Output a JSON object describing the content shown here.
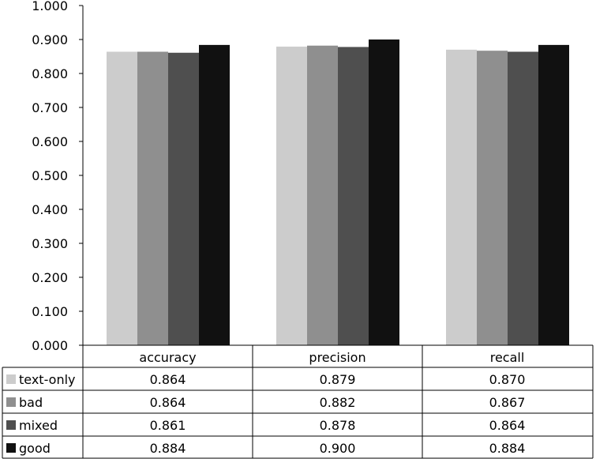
{
  "chart_data": {
    "type": "bar",
    "categories": [
      "accuracy",
      "precision",
      "recall"
    ],
    "series": [
      {
        "name": "text-only",
        "color": "#cccccc",
        "values": [
          0.864,
          0.879,
          0.87
        ]
      },
      {
        "name": "bad",
        "color": "#8f8f8f",
        "values": [
          0.864,
          0.882,
          0.867
        ]
      },
      {
        "name": "mixed",
        "color": "#4f4f4f",
        "values": [
          0.861,
          0.878,
          0.864
        ]
      },
      {
        "name": "good",
        "color": "#111111",
        "values": [
          0.884,
          0.9,
          0.884
        ]
      }
    ],
    "y_ticks": [
      "0.000",
      "0.100",
      "0.200",
      "0.300",
      "0.400",
      "0.500",
      "0.600",
      "0.700",
      "0.800",
      "0.900",
      "1.000"
    ],
    "ylim": [
      0,
      1
    ],
    "table_values": [
      [
        "0.864",
        "0.879",
        "0.870"
      ],
      [
        "0.864",
        "0.882",
        "0.867"
      ],
      [
        "0.861",
        "0.878",
        "0.864"
      ],
      [
        "0.884",
        "0.900",
        "0.884"
      ]
    ],
    "legend": "data-table",
    "grid": false
  }
}
